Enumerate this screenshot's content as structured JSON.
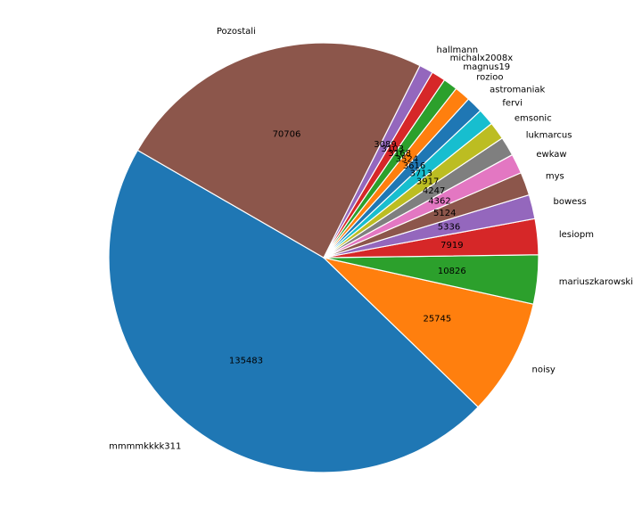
{
  "chart_data": {
    "type": "pie",
    "start_angle_deg": 150,
    "direction": "counterclockwise",
    "wedge_edge_color": "#ffffff",
    "slices": [
      {
        "label": "mmmmkkkk311",
        "value": 135483,
        "color": "#1f77b4"
      },
      {
        "label": "noisy",
        "value": 25745,
        "color": "#ff7f0e"
      },
      {
        "label": "mariuszkarowski",
        "value": 10826,
        "color": "#2ca02c"
      },
      {
        "label": "lesiopm",
        "value": 7919,
        "color": "#d62728"
      },
      {
        "label": "bowess",
        "value": 5336,
        "color": "#9467bd"
      },
      {
        "label": "mys",
        "value": 5124,
        "color": "#8c564b"
      },
      {
        "label": "ewkaw",
        "value": 4362,
        "color": "#e377c2"
      },
      {
        "label": "lukmarcus",
        "value": 4247,
        "color": "#7f7f7f"
      },
      {
        "label": "emsonic",
        "value": 3917,
        "color": "#bcbd22"
      },
      {
        "label": "fervi",
        "value": 3713,
        "color": "#17becf"
      },
      {
        "label": "astromaniak",
        "value": 3616,
        "color": "#1f77b4"
      },
      {
        "label": "rozioo",
        "value": 3524,
        "color": "#ff7f0e"
      },
      {
        "label": "magnus19",
        "value": 3168,
        "color": "#2ca02c"
      },
      {
        "label": "michalx2008x",
        "value": 3103,
        "color": "#d62728"
      },
      {
        "label": "hallmann",
        "value": 3089,
        "color": "#9467bd"
      },
      {
        "label": "Pozostali",
        "value": 70706,
        "color": "#8c564b"
      }
    ]
  }
}
